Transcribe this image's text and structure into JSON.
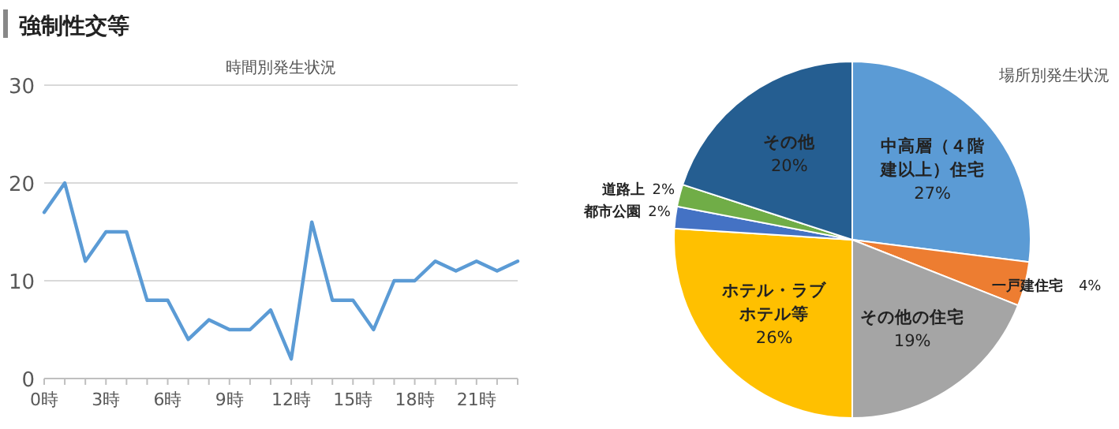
{
  "chart_data": [
    {
      "type": "line",
      "title": "強制性交等",
      "subtitle": "時間別発生状況",
      "categories": [
        "0時",
        null,
        null,
        "3時",
        null,
        null,
        "6時",
        null,
        null,
        "9時",
        null,
        null,
        "12時",
        null,
        null,
        "15時",
        null,
        null,
        "18時",
        null,
        null,
        "21時",
        null,
        null
      ],
      "series": [
        {
          "color": "#5b9bd5",
          "values": [
            17,
            20,
            12,
            15,
            15,
            8,
            8,
            4,
            6,
            5,
            5,
            7,
            2,
            16,
            8,
            8,
            5,
            10,
            10,
            12,
            11,
            12,
            11,
            12
          ]
        }
      ],
      "ylim": [
        0,
        30
      ],
      "yticks": [
        0,
        10,
        20,
        30
      ],
      "grid": "y",
      "marker": "none",
      "line_style": "solid"
    },
    {
      "type": "pie",
      "title": "場所別発生状況",
      "categories": [
        "中高層（４階建以上）住宅",
        "一戸建住宅",
        "その他の住宅",
        "ホテル・ラブホテル等",
        "都市公園",
        "道路上",
        "その他"
      ],
      "values": [
        27,
        4,
        19,
        26,
        2,
        2,
        20
      ],
      "colors": [
        "#5b9bd5",
        "#ed7d31",
        "#a5a5a5",
        "#ffc000",
        "#4472c4",
        "#70ad47",
        "#255e91"
      ],
      "value_labels": [
        "27%",
        "4%",
        "19%",
        "26%",
        "2%",
        "2%",
        "20%"
      ]
    }
  ]
}
